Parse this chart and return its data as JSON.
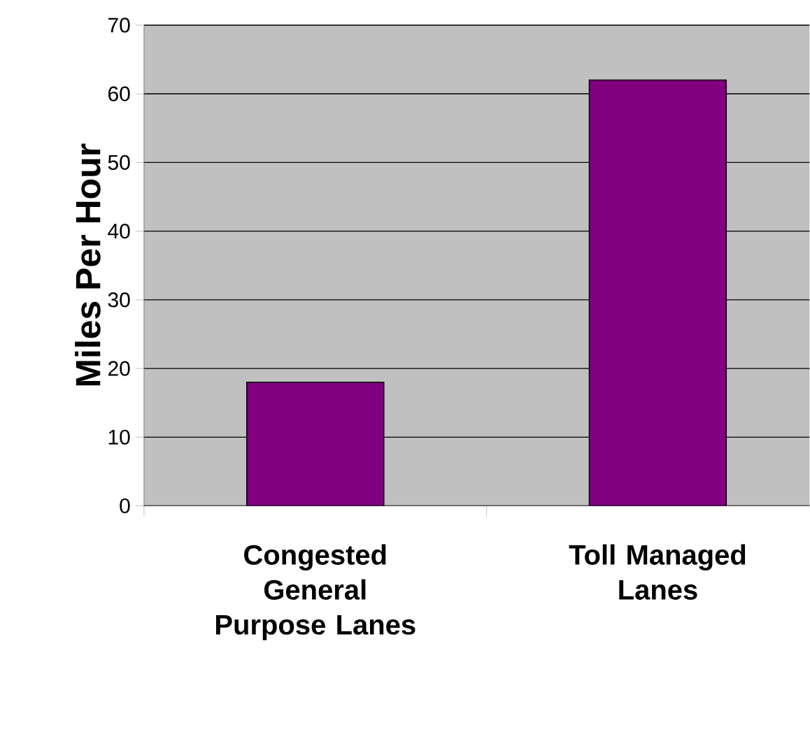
{
  "chart_data": {
    "type": "bar",
    "ylabel": "Miles Per Hour",
    "categories": [
      "Congested General Purpose Lanes",
      "Toll Managed Lanes"
    ],
    "values": [
      18,
      62
    ],
    "color": "#800080",
    "ylim": [
      0,
      70
    ],
    "yticks": [
      0,
      10,
      20,
      30,
      40,
      50,
      60,
      70
    ],
    "grid": "y"
  }
}
